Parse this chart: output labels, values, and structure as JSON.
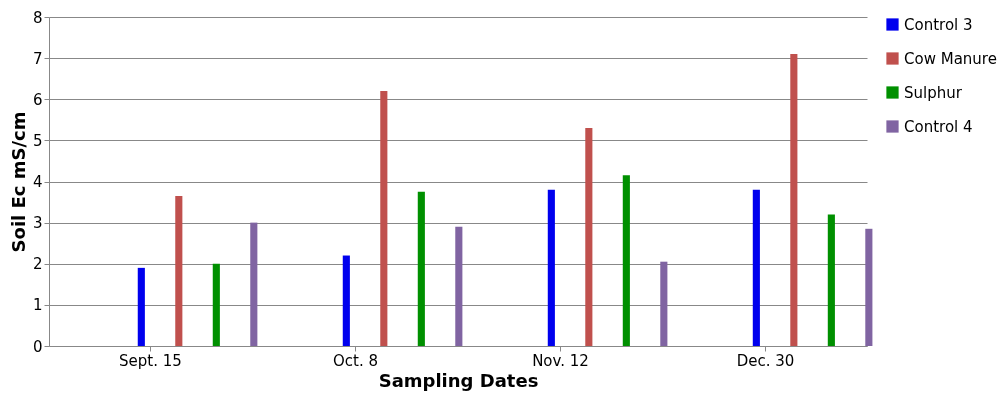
{
  "chart_data": {
    "type": "bar",
    "xlabel": "Sampling Dates",
    "ylabel": "Soil Ec mS/cm",
    "categories": [
      "Sept. 15",
      "Oct. 8",
      "Nov. 12",
      "Dec. 30"
    ],
    "series": [
      {
        "name": "Control 3",
        "color": "#0000ee",
        "values": [
          1.9,
          2.2,
          3.8,
          3.8
        ]
      },
      {
        "name": "Cow Manure",
        "color": "#c0504d",
        "values": [
          3.65,
          6.2,
          5.3,
          7.1
        ]
      },
      {
        "name": "Sulphur",
        "color": "#009000",
        "values": [
          2.0,
          3.75,
          4.15,
          3.2
        ]
      },
      {
        "name": "Control 4",
        "color": "#8064a2",
        "values": [
          3.0,
          2.9,
          2.05,
          2.85
        ]
      }
    ],
    "ylim": [
      0,
      8
    ],
    "yticks": [
      0,
      1,
      2,
      3,
      4,
      5,
      6,
      7,
      8
    ],
    "grid": "y",
    "legend": "right"
  }
}
